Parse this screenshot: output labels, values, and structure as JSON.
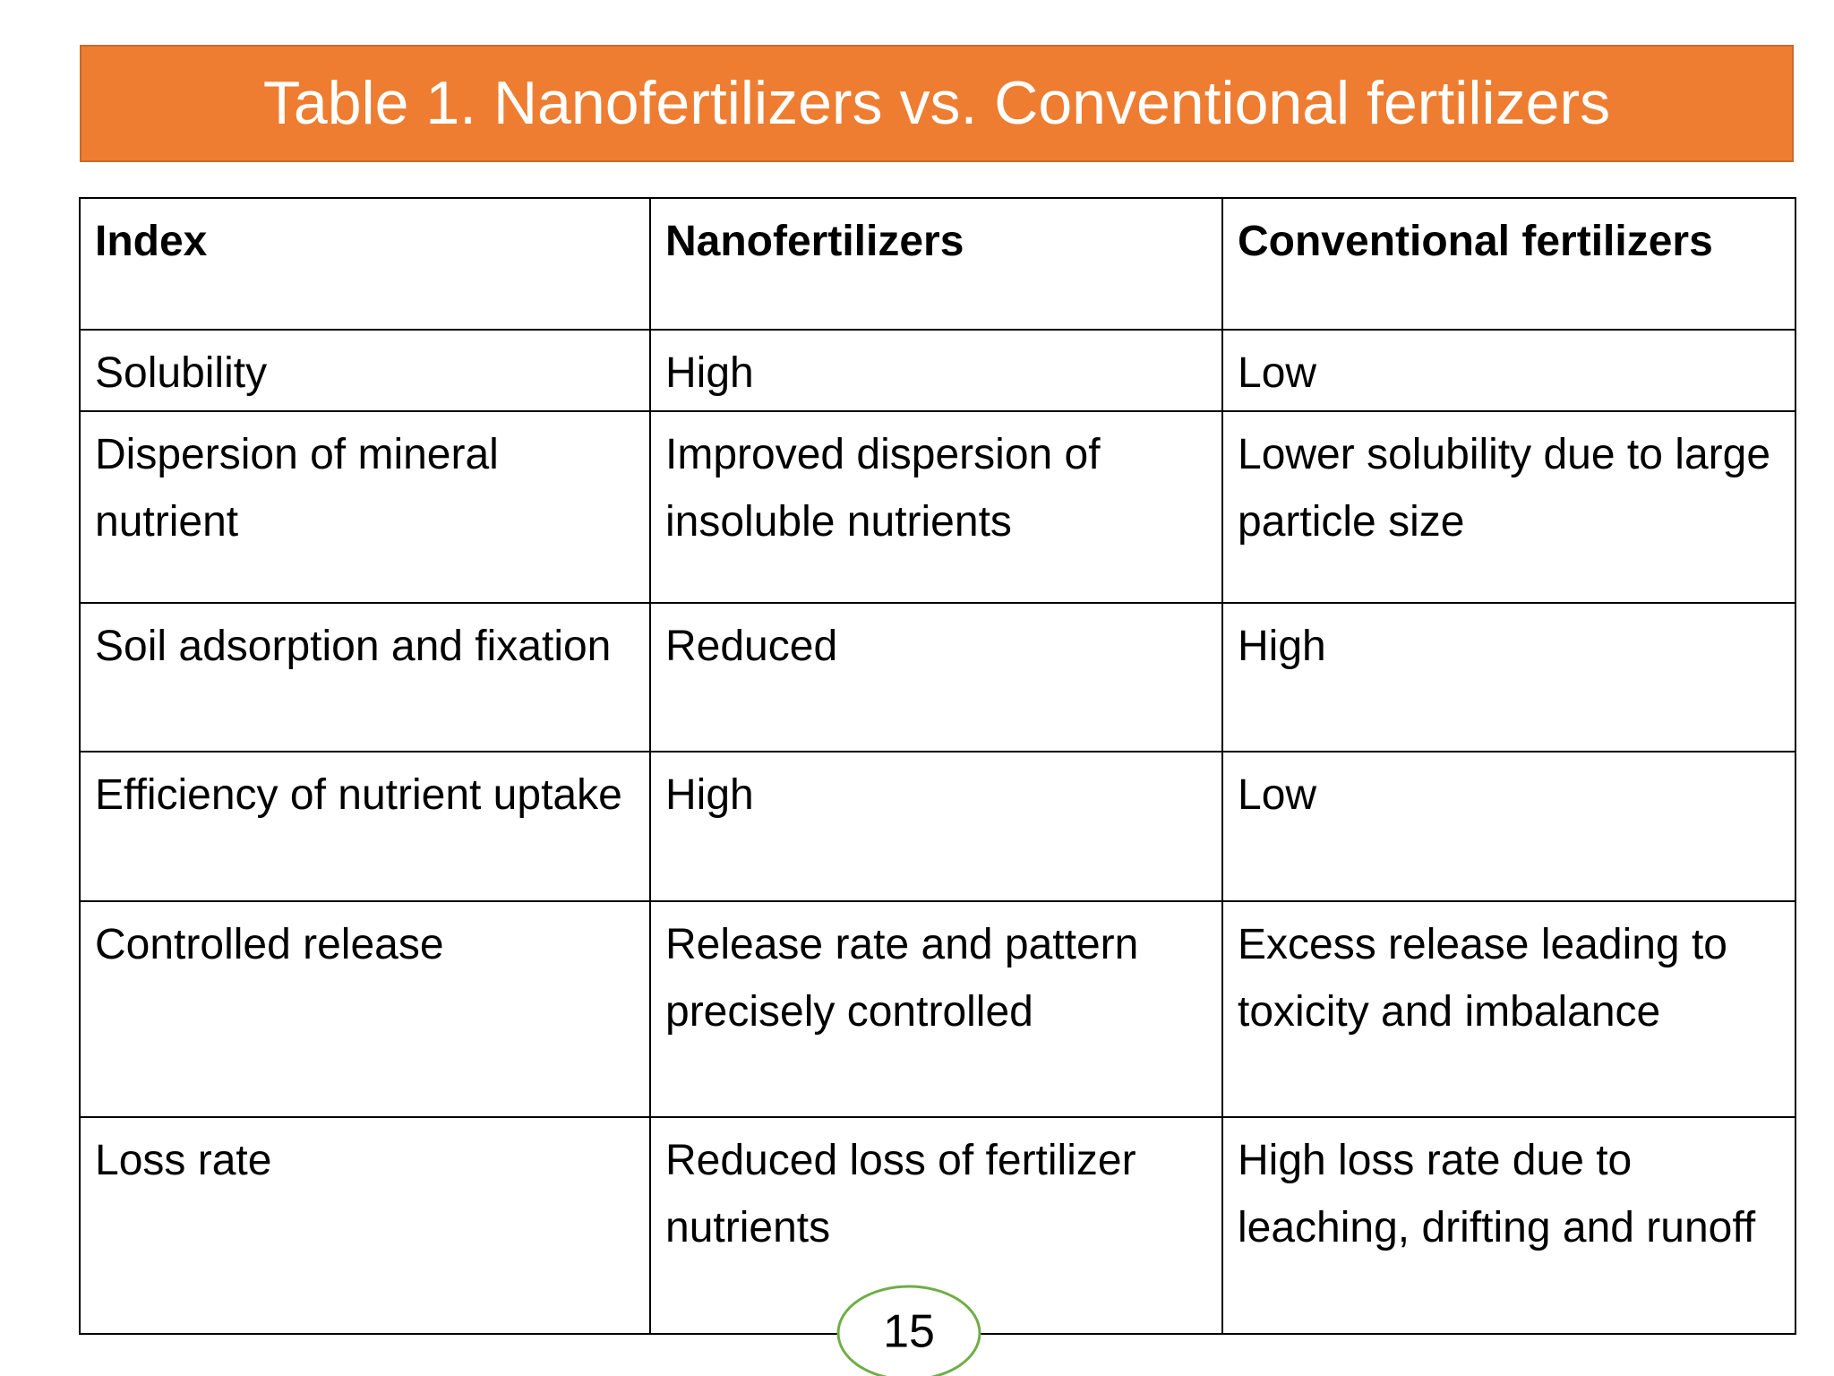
{
  "title": "Table 1. Nanofertilizers vs. Conventional fertilizers",
  "table": {
    "header": [
      "Index",
      "Nanofertilizers",
      "Conventional fertilizers"
    ],
    "rows": [
      [
        "Solubility",
        "High",
        "Low"
      ],
      [
        "Dispersion of mineral nutrient",
        "Improved dispersion of insoluble nutrients",
        "Lower solubility due to large particle size"
      ],
      [
        "Soil adsorption and fixation",
        "Reduced",
        "High"
      ],
      [
        "Efficiency of nutrient uptake",
        "High",
        "Low"
      ],
      [
        "Controlled release",
        "Release rate and pattern precisely controlled",
        "Excess release leading to toxicity and imbalance"
      ],
      [
        "Loss rate",
        "Reduced loss of fertilizer nutrients",
        "High loss rate due to leaching, drifting and runoff"
      ]
    ]
  },
  "page_number": "15"
}
